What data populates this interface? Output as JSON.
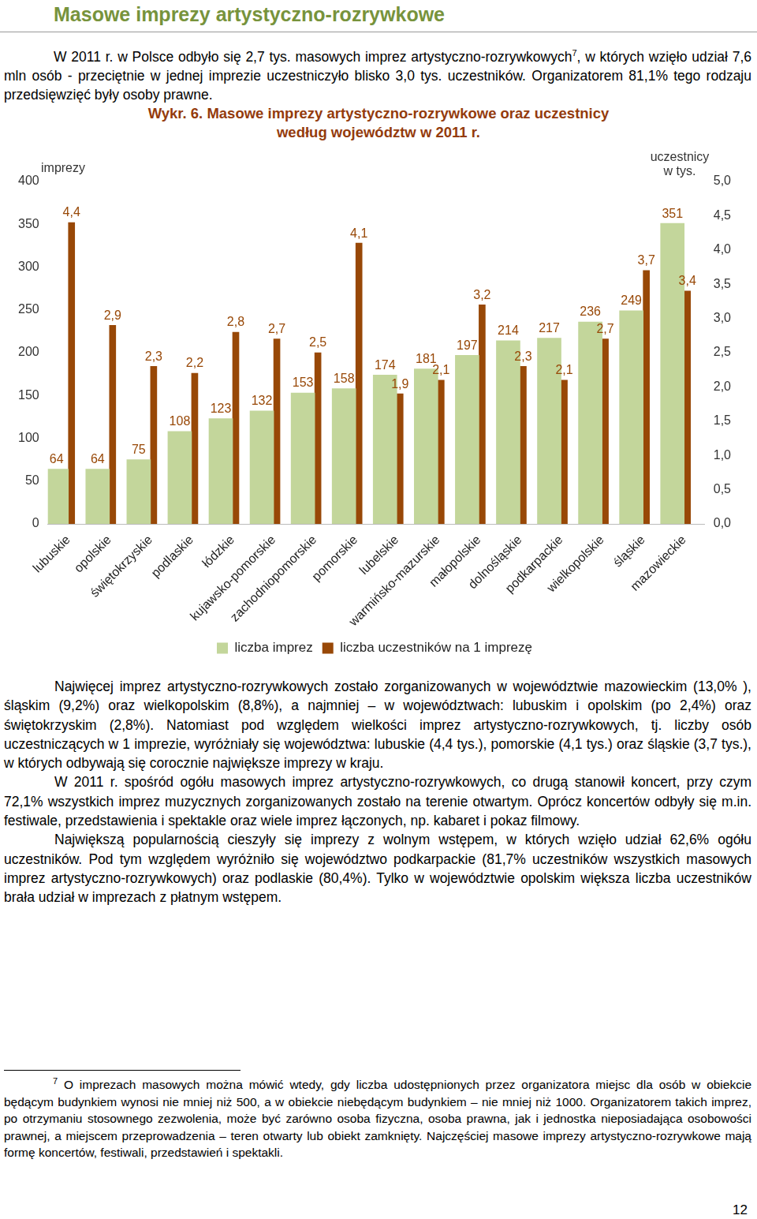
{
  "header": {
    "title": "Masowe imprezy artystyczno-rozrywkowe"
  },
  "intro": {
    "text_before": "W 2011 r. w Polsce odbyło się 2,7 tys. masowych imprez artystyczno-rozrywkowych",
    "footnote_ref": "7",
    "text_after": ", w których wzięło udział 7,6 mln osób - przeciętnie w jednej imprezie uczestniczyło blisko 3,0 tys. uczestników. Organizatorem 81,1% tego rodzaju przedsięwzięć były osoby prawne."
  },
  "chart_data": {
    "type": "bar",
    "title": "Wykr. 6. Masowe imprezy artystyczno-rozrywkowe oraz uczestnicy według województw w 2011 r.",
    "ylabel": "imprezy",
    "y2label": "uczestnicy w tys.",
    "categories": [
      "lubuskie",
      "opolskie",
      "świętokrzyskie",
      "podlaskie",
      "łódzkie",
      "kujawsko-pomorskie",
      "zachodniopomorskie",
      "pomorskie",
      "lubelskie",
      "warmińsko-mazurskie",
      "małopolskie",
      "dolnośląskie",
      "podkarpackie",
      "wielkopolskie",
      "śląskie",
      "mazowieckie"
    ],
    "series": [
      {
        "name": "liczba imprez",
        "color": "#c3d69b",
        "values": [
          64,
          64,
          75,
          108,
          123,
          132,
          153,
          158,
          174,
          181,
          197,
          214,
          217,
          236,
          249,
          351
        ]
      },
      {
        "name": "liczba uczestników na 1 imprezę",
        "color": "#984807",
        "axis": "y2",
        "values": [
          4.4,
          2.9,
          2.3,
          2.2,
          2.8,
          2.7,
          2.5,
          4.1,
          1.9,
          2.1,
          3.2,
          2.3,
          2.1,
          2.7,
          3.7,
          3.4
        ],
        "value_labels": [
          "4,4",
          "2,9",
          "2,3",
          "2,2",
          "2,8",
          "2,7",
          "2,5",
          "4,1",
          "1,9",
          "2,1",
          "3,2",
          "2,3",
          "2,1",
          "2,7",
          "3,7",
          "3,4"
        ]
      }
    ],
    "ylim": [
      0,
      400
    ],
    "yticks": [
      0,
      50,
      100,
      150,
      200,
      250,
      300,
      350,
      400
    ],
    "y2lim": [
      0,
      5
    ],
    "y2ticks": [
      {
        "value": 0,
        "label": "0,0"
      },
      {
        "value": 0.5,
        "label": "0,5"
      },
      {
        "value": 1,
        "label": "1,0"
      },
      {
        "value": 1.5,
        "label": "1,5"
      },
      {
        "value": 2,
        "label": "2,0"
      },
      {
        "value": 2.5,
        "label": "2,5"
      },
      {
        "value": 3,
        "label": "3,0"
      },
      {
        "value": 3.5,
        "label": "3,5"
      },
      {
        "value": 4,
        "label": "4,0"
      },
      {
        "value": 4.5,
        "label": "4,5"
      },
      {
        "value": 5,
        "label": "5,0"
      }
    ],
    "grid": false,
    "legend": "bottom",
    "data_labels": true
  },
  "paragraphs": [
    "Najwięcej imprez artystyczno-rozrywkowych zostało zorganizowanych w województwie mazowieckim (13,0% ), śląskim (9,2%) oraz wielkopolskim (8,8%), a najmniej – w województwach: lubuskim i opolskim (po 2,4%) oraz świętokrzyskim (2,8%). Natomiast pod względem wielkości imprez artystyczno-rozrywkowych, tj. liczby osób uczestniczących w 1 imprezie, wyróżniały się województwa: lubuskie (4,4 tys.), pomorskie (4,1 tys.) oraz śląskie (3,7 tys.), w których odbywają się corocznie największe imprezy w kraju.",
    "W 2011 r. spośród ogółu masowych imprez artystyczno-rozrywkowych, co drugą stanowił koncert, przy czym 72,1% wszystkich imprez muzycznych zorganizowanych zostało na terenie otwartym. Oprócz koncertów odbyły się m.in. festiwale, przedstawienia i spektakle oraz wiele imprez łączonych, np. kabaret i pokaz filmowy.",
    "Największą popularnością cieszyły się imprezy z wolnym wstępem, w których wzięło udział 62,6% ogółu uczestników. Pod tym względem wyróżniło się województwo podkarpackie (81,7% uczestników wszystkich masowych imprez artystyczno-rozrywkowych) oraz podlaskie (80,4%). Tylko w województwie opolskim większa liczba uczestników brała udział w imprezach z płatnym wstępem."
  ],
  "footnote": {
    "marker": "7",
    "text": "O imprezach masowych można mówić wtedy, gdy liczba udostępnionych przez organizatora miejsc dla osób w obiekcie będącym budynkiem wynosi nie mniej niż 500, a w obiekcie niebędącym budynkiem – nie mniej niż 1000. Organizatorem takich imprez, po otrzymaniu stosownego zezwolenia, może być zarówno osoba fizyczna, osoba prawna, jak i jednostka nieposiadająca osobowości prawnej, a miejscem przeprowadzenia – teren otwarty lub obiekt zamknięty. Najczęściej masowe imprezy artystyczno-rozrywkowe mają formę koncertów, festiwali, przedstawień i spektakli."
  },
  "page_number": 12
}
